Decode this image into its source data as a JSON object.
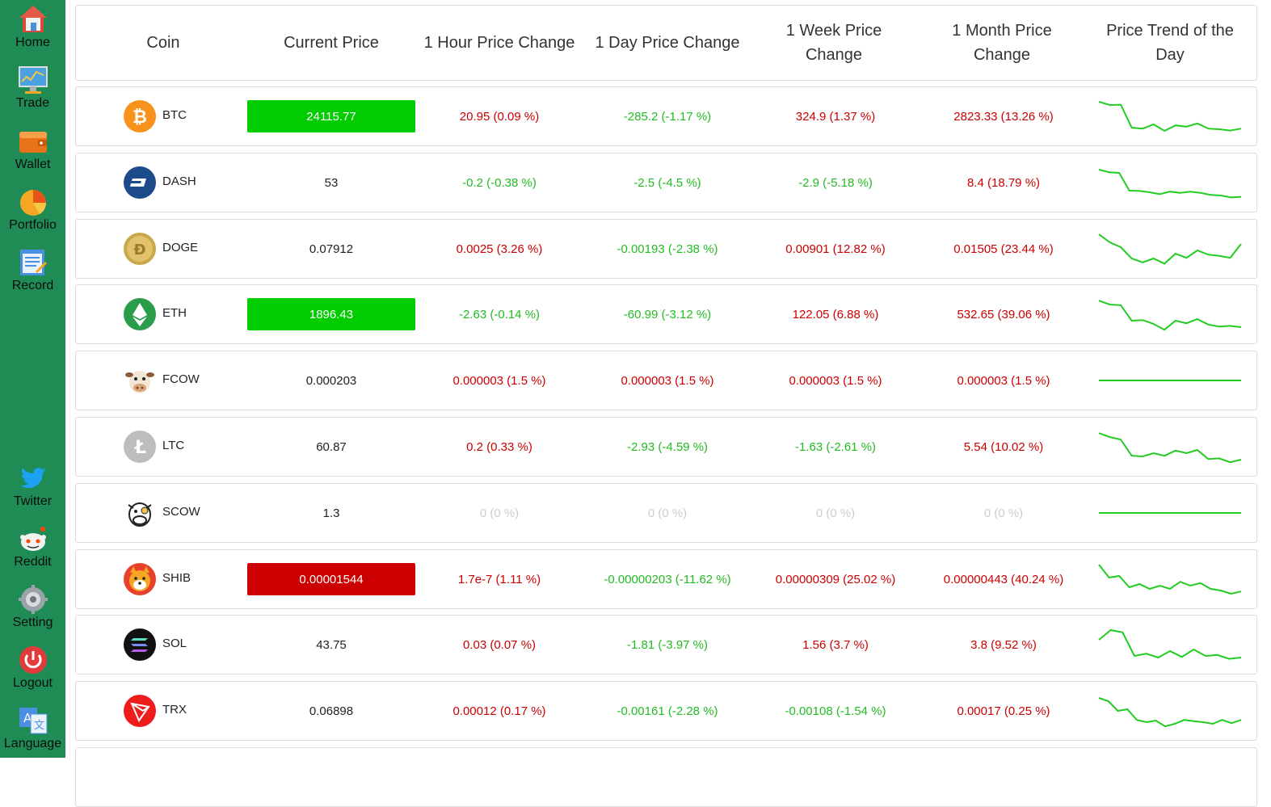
{
  "sidebar": {
    "items": [
      {
        "label": "Home",
        "icon": "home-icon"
      },
      {
        "label": "Trade",
        "icon": "trade-chart-icon"
      },
      {
        "label": "Wallet",
        "icon": "wallet-icon"
      },
      {
        "label": "Portfolio",
        "icon": "pie-chart-icon"
      },
      {
        "label": "Record",
        "icon": "notepad-icon"
      },
      {
        "label": "Twitter",
        "icon": "twitter-icon"
      },
      {
        "label": "Reddit",
        "icon": "reddit-icon"
      },
      {
        "label": "Setting",
        "icon": "settings-icon"
      },
      {
        "label": "Logout",
        "icon": "power-icon"
      },
      {
        "label": "Language",
        "icon": "translate-icon"
      }
    ]
  },
  "table": {
    "headers": [
      "Coin",
      "Current Price",
      "1 Hour Price Change",
      "1 Day Price Change",
      "1 Week Price Change",
      "1 Month Price Change",
      "Price Trend of the Day"
    ],
    "rows": [
      {
        "coin": "BTC",
        "icon": "bitcoin-icon",
        "price": "24115.77",
        "price_highlight": "#00cc00",
        "h1": "20.95 (0.09 %)",
        "h1_color": "#cc0000",
        "d1": "-285.2 (-1.17 %)",
        "d1_color": "#22bb22",
        "w1": "324.9 (1.37 %)",
        "w1_color": "#cc0000",
        "m1": "2823.33 (13.26 %)",
        "m1_color": "#cc0000",
        "trend": [
          0.95,
          0.85,
          0.86,
          0.15,
          0.12,
          0.25,
          0.05,
          0.22,
          0.18,
          0.28,
          0.12,
          0.1,
          0.06,
          0.12
        ]
      },
      {
        "coin": "DASH",
        "icon": "dash-icon",
        "price": "53",
        "price_highlight": null,
        "h1": "-0.2 (-0.38 %)",
        "h1_color": "#22bb22",
        "d1": "-2.5 (-4.5 %)",
        "d1_color": "#22bb22",
        "w1": "-2.9 (-5.18 %)",
        "w1_color": "#22bb22",
        "m1": "8.4 (18.79 %)",
        "m1_color": "#cc0000",
        "trend": [
          0.9,
          0.82,
          0.8,
          0.25,
          0.24,
          0.2,
          0.14,
          0.22,
          0.18,
          0.22,
          0.18,
          0.12,
          0.1,
          0.04,
          0.06
        ]
      },
      {
        "coin": "DOGE",
        "icon": "dogecoin-icon",
        "price": "0.07912",
        "price_highlight": null,
        "h1": "0.0025 (3.26 %)",
        "h1_color": "#cc0000",
        "d1": "-0.00193 (-2.38 %)",
        "d1_color": "#22bb22",
        "w1": "0.00901 (12.82 %)",
        "w1_color": "#cc0000",
        "m1": "0.01505 (23.44 %)",
        "m1_color": "#cc0000",
        "trend": [
          0.95,
          0.7,
          0.55,
          0.2,
          0.08,
          0.2,
          0.04,
          0.35,
          0.22,
          0.45,
          0.32,
          0.28,
          0.22,
          0.65
        ]
      },
      {
        "coin": "ETH",
        "icon": "ethereum-icon",
        "price": "1896.43",
        "price_highlight": "#00cc00",
        "h1": "-2.63 (-0.14 %)",
        "h1_color": "#22bb22",
        "d1": "-60.99 (-3.12 %)",
        "d1_color": "#22bb22",
        "w1": "122.05 (6.88 %)",
        "w1_color": "#cc0000",
        "m1": "532.65 (39.06 %)",
        "m1_color": "#cc0000",
        "trend": [
          0.92,
          0.8,
          0.78,
          0.3,
          0.32,
          0.2,
          0.02,
          0.3,
          0.22,
          0.35,
          0.18,
          0.12,
          0.14,
          0.1
        ]
      },
      {
        "coin": "FCOW",
        "icon": "cow-icon",
        "price": "0.000203",
        "price_highlight": null,
        "h1": "0.000003 (1.5 %)",
        "h1_color": "#cc0000",
        "d1": "0.000003 (1.5 %)",
        "d1_color": "#cc0000",
        "w1": "0.000003 (1.5 %)",
        "w1_color": "#cc0000",
        "m1": "0.000003 (1.5 %)",
        "m1_color": "#cc0000",
        "trend": [
          0.5,
          0.5,
          0.5,
          0.5,
          0.5,
          0.5,
          0.5,
          0.5
        ]
      },
      {
        "coin": "LTC",
        "icon": "litecoin-icon",
        "price": "60.87",
        "price_highlight": null,
        "h1": "0.2 (0.33 %)",
        "h1_color": "#cc0000",
        "d1": "-2.93 (-4.59 %)",
        "d1_color": "#22bb22",
        "w1": "-1.63 (-2.61 %)",
        "w1_color": "#22bb22",
        "m1": "5.54 (10.02 %)",
        "m1_color": "#cc0000",
        "trend": [
          0.92,
          0.8,
          0.72,
          0.22,
          0.2,
          0.3,
          0.22,
          0.38,
          0.3,
          0.4,
          0.12,
          0.14,
          0.02,
          0.1
        ]
      },
      {
        "coin": "SCOW",
        "icon": "cow-outline-icon",
        "price": "1.3",
        "price_highlight": null,
        "h1": "0 (0 %)",
        "h1_color": "#cccccc",
        "d1": "0 (0 %)",
        "d1_color": "#cccccc",
        "w1": "0 (0 %)",
        "w1_color": "#cccccc",
        "m1": "0 (0 %)",
        "m1_color": "#cccccc",
        "trend": [
          0.5,
          0.5,
          0.5,
          0.5,
          0.5,
          0.5,
          0.5,
          0.5
        ]
      },
      {
        "coin": "SHIB",
        "icon": "shiba-icon",
        "price": "0.00001544",
        "price_highlight": "#cc0000",
        "h1": "1.7e-7 (1.11 %)",
        "h1_color": "#cc0000",
        "d1": "-0.00000203 (-11.62 %)",
        "d1_color": "#22bb22",
        "w1": "0.00000309 (25.02 %)",
        "w1_color": "#cc0000",
        "m1": "0.00000443 (40.24 %)",
        "m1_color": "#cc0000",
        "trend": [
          0.95,
          0.55,
          0.6,
          0.25,
          0.35,
          0.2,
          0.3,
          0.2,
          0.42,
          0.3,
          0.38,
          0.2,
          0.15,
          0.05,
          0.12
        ]
      },
      {
        "coin": "SOL",
        "icon": "solana-icon",
        "price": "43.75",
        "price_highlight": null,
        "h1": "0.03 (0.07 %)",
        "h1_color": "#cc0000",
        "d1": "-1.81 (-3.97 %)",
        "d1_color": "#22bb22",
        "w1": "1.56 (3.7 %)",
        "w1_color": "#cc0000",
        "m1": "3.8 (9.52 %)",
        "m1_color": "#cc0000",
        "trend": [
          0.65,
          0.95,
          0.88,
          0.15,
          0.22,
          0.1,
          0.3,
          0.12,
          0.35,
          0.15,
          0.18,
          0.06,
          0.1
        ]
      },
      {
        "coin": "TRX",
        "icon": "tron-icon",
        "price": "0.06898",
        "price_highlight": null,
        "h1": "0.00012 (0.17 %)",
        "h1_color": "#cc0000",
        "d1": "-0.00161 (-2.28 %)",
        "d1_color": "#22bb22",
        "w1": "-0.00108 (-1.54 %)",
        "w1_color": "#22bb22",
        "m1": "0.00017 (0.25 %)",
        "m1_color": "#cc0000",
        "trend": [
          0.9,
          0.8,
          0.5,
          0.55,
          0.22,
          0.15,
          0.2,
          0.02,
          0.1,
          0.22,
          0.18,
          0.15,
          0.1,
          0.22,
          0.12,
          0.22
        ]
      }
    ]
  }
}
